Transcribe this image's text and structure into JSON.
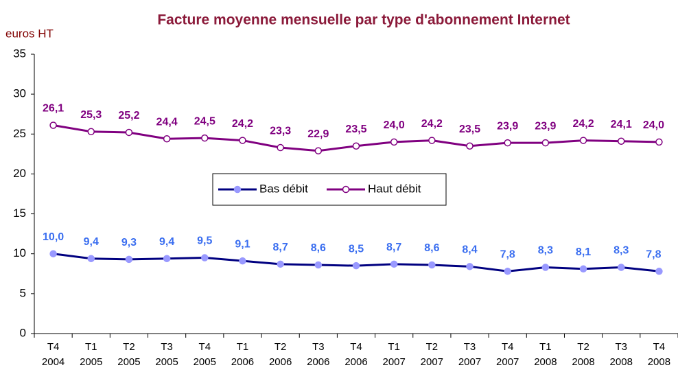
{
  "chart_data": {
    "type": "line",
    "title": "Facture moyenne mensuelle par type d'abonnement Internet",
    "y_label": "euros HT",
    "categories": [
      [
        "T4",
        "2004"
      ],
      [
        "T1",
        "2005"
      ],
      [
        "T2",
        "2005"
      ],
      [
        "T3",
        "2005"
      ],
      [
        "T4",
        "2005"
      ],
      [
        "T1",
        "2006"
      ],
      [
        "T2",
        "2006"
      ],
      [
        "T3",
        "2006"
      ],
      [
        "T4",
        "2006"
      ],
      [
        "T1",
        "2007"
      ],
      [
        "T2",
        "2007"
      ],
      [
        "T3",
        "2007"
      ],
      [
        "T4",
        "2007"
      ],
      [
        "T1",
        "2008"
      ],
      [
        "T2",
        "2008"
      ],
      [
        "T3",
        "2008"
      ],
      [
        "T4",
        "2008"
      ]
    ],
    "series": [
      {
        "name": "Bas débit",
        "color": "#000080",
        "marker_color": "#9999ff",
        "label_color": "#3a6ef0",
        "values": [
          10.0,
          9.4,
          9.3,
          9.4,
          9.5,
          9.1,
          8.7,
          8.6,
          8.5,
          8.7,
          8.6,
          8.4,
          7.8,
          8.3,
          8.1,
          8.3,
          7.8
        ],
        "value_labels": [
          "10,0",
          "9,4",
          "9,3",
          "9,4",
          "9,5",
          "9,1",
          "8,7",
          "8,6",
          "8,5",
          "8,7",
          "8,6",
          "8,4",
          "7,8",
          "8,3",
          "8,1",
          "8,3",
          "7,8"
        ]
      },
      {
        "name": "Haut débit",
        "color": "#800080",
        "marker_color": "#ffffff",
        "label_color": "#800080",
        "values": [
          26.1,
          25.3,
          25.2,
          24.4,
          24.5,
          24.2,
          23.3,
          22.9,
          23.5,
          24.0,
          24.2,
          23.5,
          23.9,
          23.9,
          24.2,
          24.1,
          24.0
        ],
        "value_labels": [
          "26,1",
          "25,3",
          "25,2",
          "24,4",
          "24,5",
          "24,2",
          "23,3",
          "22,9",
          "23,5",
          "24,0",
          "24,2",
          "23,5",
          "23,9",
          "23,9",
          "24,2",
          "24,1",
          "24,0"
        ]
      }
    ],
    "ylim": [
      0,
      35
    ],
    "yticks": [
      0,
      5,
      10,
      15,
      20,
      25,
      30,
      35
    ],
    "grid": false
  }
}
